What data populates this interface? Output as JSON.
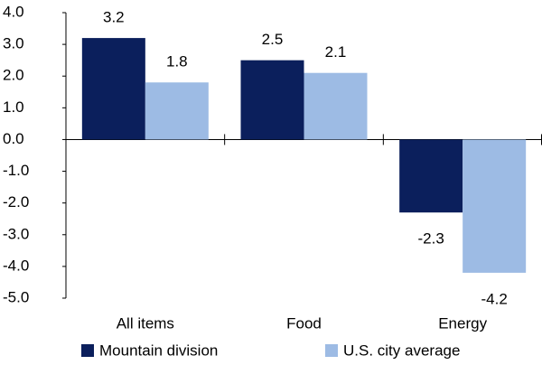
{
  "chart_data": {
    "type": "bar",
    "categories": [
      "All items",
      "Food",
      "Energy"
    ],
    "series": [
      {
        "name": "Mountain division",
        "color": "#0b1f5c",
        "values": [
          3.2,
          2.5,
          -2.3
        ]
      },
      {
        "name": "U.S. city average",
        "color": "#9dbbe4",
        "values": [
          1.8,
          2.1,
          -4.2
        ]
      }
    ],
    "ylim": [
      -5,
      4
    ],
    "yticks": [
      {
        "value": -5,
        "label": "-5.0"
      },
      {
        "value": -4,
        "label": "-4.0"
      },
      {
        "value": -3,
        "label": "-3.0"
      },
      {
        "value": -2,
        "label": "-2.0"
      },
      {
        "value": -1,
        "label": "-1.0"
      },
      {
        "value": 0,
        "label": "0.0"
      },
      {
        "value": 1,
        "label": "1.0"
      },
      {
        "value": 2,
        "label": "2.0"
      },
      {
        "value": 3,
        "label": "3.0"
      },
      {
        "value": 4,
        "label": "4.0"
      }
    ],
    "legend": "bottom"
  }
}
